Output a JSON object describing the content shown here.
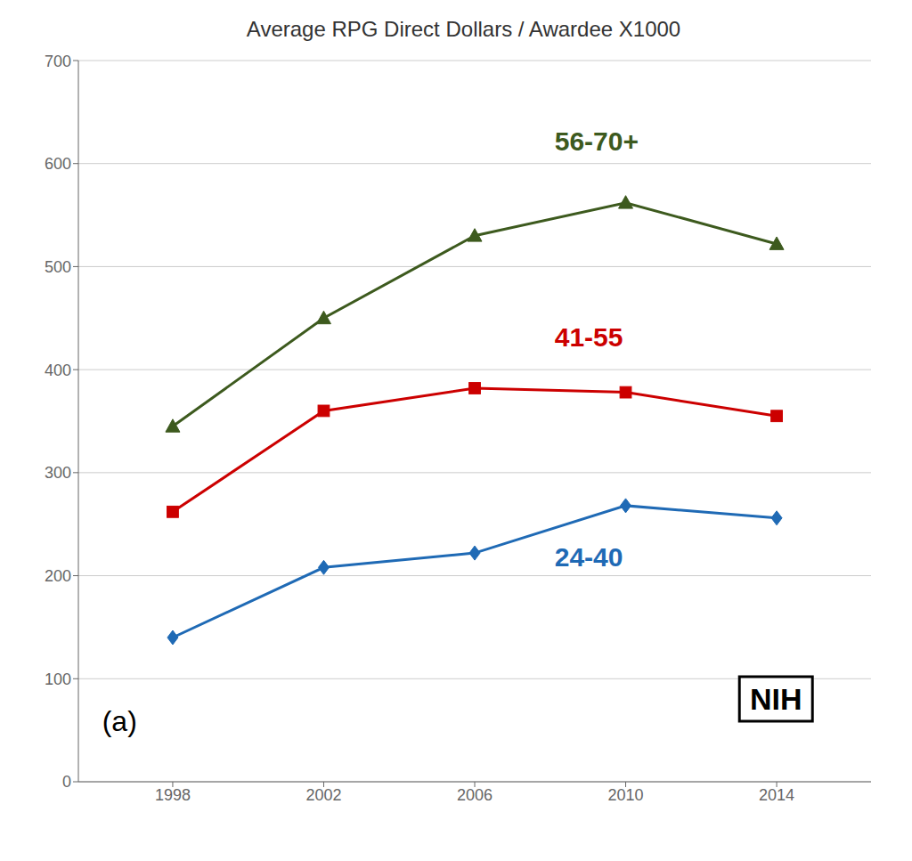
{
  "chart_data": {
    "type": "line",
    "title": "Average RPG Direct Dollars / Awardee X1000",
    "x": [
      1998,
      2002,
      2006,
      2010,
      2014
    ],
    "series": [
      {
        "name": "56-70+",
        "color": "#3d5a1e",
        "marker": "triangle",
        "values": [
          345,
          450,
          530,
          562,
          522
        ]
      },
      {
        "name": "41-55",
        "color": "#cc0000",
        "marker": "square",
        "values": [
          262,
          360,
          382,
          378,
          355
        ]
      },
      {
        "name": "24-40",
        "color": "#1f6ab5",
        "marker": "diamond",
        "values": [
          140,
          208,
          222,
          268,
          256
        ]
      }
    ],
    "xlim": [
      1995.5,
      2016.5
    ],
    "xticks": [
      1998,
      2002,
      2006,
      2010,
      2014
    ],
    "ylim": [
      0,
      700
    ],
    "yticks": [
      0,
      100,
      200,
      300,
      400,
      500,
      600,
      700
    ],
    "grid": true,
    "annotations": [
      {
        "text": "56-70+",
        "x": 2008.0,
        "y": 622,
        "color": "#3d5a1e"
      },
      {
        "text": "41-55",
        "x": 2008.0,
        "y": 432,
        "color": "#cc0000"
      },
      {
        "text": "24-40",
        "x": 2008.0,
        "y": 218,
        "color": "#1f6ab5"
      },
      {
        "text": "(a)"
      },
      {
        "text": "NIH"
      }
    ]
  }
}
